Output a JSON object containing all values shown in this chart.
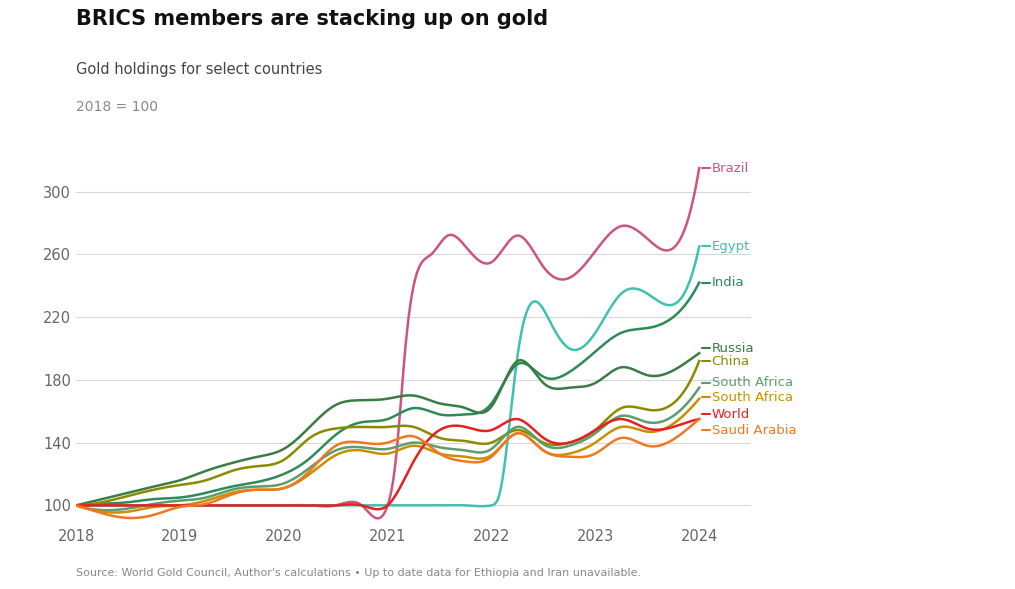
{
  "title": "BRICS members are stacking up on gold",
  "subtitle": "Gold holdings for select countries",
  "ylabel_note": "2018 = 100",
  "source": "Source: World Gold Council, Author's calculations • Up to date data for Ethiopia and Iran unavailable.",
  "ylim": [
    88,
    332
  ],
  "yticks": [
    100,
    140,
    180,
    220,
    260,
    300
  ],
  "xlim": [
    2018,
    2024.5
  ],
  "background_color": "#ffffff",
  "series": {
    "Brazil": {
      "color": "#cc5580",
      "data_x": [
        2018.0,
        2018.25,
        2018.5,
        2018.75,
        2019.0,
        2019.25,
        2019.5,
        2019.75,
        2020.0,
        2020.25,
        2020.5,
        2020.75,
        2021.0,
        2021.08,
        2021.17,
        2021.25,
        2021.42,
        2021.58,
        2021.75,
        2022.0,
        2022.25,
        2022.5,
        2022.75,
        2023.0,
        2023.25,
        2023.5,
        2023.75,
        2024.0
      ],
      "data_y": [
        100,
        100,
        100,
        100,
        100,
        100,
        100,
        100,
        100,
        100,
        100,
        100,
        100,
        130,
        200,
        240,
        260,
        272,
        265,
        255,
        272,
        252,
        245,
        262,
        278,
        270,
        264,
        315
      ]
    },
    "Egypt": {
      "color": "#40c0b0",
      "data_x": [
        2018.0,
        2018.25,
        2018.5,
        2018.75,
        2019.0,
        2019.25,
        2019.5,
        2019.75,
        2020.0,
        2020.25,
        2020.5,
        2020.75,
        2021.0,
        2021.25,
        2021.5,
        2021.75,
        2022.0,
        2022.08,
        2022.25,
        2022.42,
        2022.58,
        2022.75,
        2023.0,
        2023.25,
        2023.5,
        2023.75,
        2024.0
      ],
      "data_y": [
        100,
        100,
        100,
        100,
        100,
        100,
        100,
        100,
        100,
        100,
        100,
        100,
        100,
        100,
        100,
        100,
        100,
        108,
        195,
        230,
        215,
        200,
        210,
        235,
        235,
        228,
        265
      ]
    },
    "India": {
      "color": "#2e8b57",
      "data_x": [
        2018.0,
        2018.25,
        2018.5,
        2018.75,
        2019.0,
        2019.25,
        2019.5,
        2019.75,
        2020.0,
        2020.25,
        2020.5,
        2020.75,
        2021.0,
        2021.25,
        2021.5,
        2021.75,
        2022.0,
        2022.25,
        2022.5,
        2022.75,
        2023.0,
        2023.25,
        2023.5,
        2023.75,
        2024.0
      ],
      "data_y": [
        100,
        101,
        102,
        104,
        105,
        108,
        112,
        115,
        120,
        130,
        145,
        153,
        155,
        162,
        158,
        158,
        165,
        190,
        182,
        185,
        198,
        210,
        213,
        220,
        242
      ]
    },
    "Russia": {
      "color": "#3a7d44",
      "data_x": [
        2018.0,
        2018.25,
        2018.5,
        2018.75,
        2019.0,
        2019.25,
        2019.5,
        2019.75,
        2020.0,
        2020.25,
        2020.5,
        2020.75,
        2021.0,
        2021.25,
        2021.5,
        2021.75,
        2022.0,
        2022.25,
        2022.5,
        2022.75,
        2023.0,
        2023.25,
        2023.5,
        2023.75,
        2024.0
      ],
      "data_y": [
        100,
        104,
        108,
        112,
        116,
        122,
        127,
        131,
        136,
        150,
        164,
        167,
        168,
        170,
        165,
        162,
        163,
        192,
        178,
        175,
        178,
        188,
        183,
        186,
        197
      ]
    },
    "China": {
      "color": "#8b8b00",
      "data_x": [
        2018.0,
        2018.25,
        2018.5,
        2018.75,
        2019.0,
        2019.25,
        2019.5,
        2019.75,
        2020.0,
        2020.25,
        2020.5,
        2020.75,
        2021.0,
        2021.25,
        2021.5,
        2021.75,
        2022.0,
        2022.25,
        2022.5,
        2022.75,
        2023.0,
        2023.25,
        2023.5,
        2023.75,
        2024.0
      ],
      "data_y": [
        100,
        102,
        106,
        110,
        113,
        116,
        122,
        125,
        129,
        143,
        149,
        150,
        150,
        150,
        143,
        141,
        140,
        148,
        140,
        140,
        148,
        162,
        161,
        165,
        192
      ]
    },
    "South_Africa_green": {
      "color": "#5a9e6f",
      "data_x": [
        2018.0,
        2018.25,
        2018.5,
        2018.75,
        2019.0,
        2019.25,
        2019.5,
        2019.75,
        2020.0,
        2020.25,
        2020.5,
        2020.75,
        2021.0,
        2021.25,
        2021.5,
        2021.75,
        2022.0,
        2022.25,
        2022.5,
        2022.75,
        2023.0,
        2023.25,
        2023.5,
        2023.75,
        2024.0
      ],
      "data_y": [
        100,
        97,
        98,
        101,
        103,
        105,
        110,
        112,
        114,
        124,
        135,
        137,
        136,
        140,
        137,
        135,
        136,
        150,
        139,
        138,
        146,
        157,
        153,
        157,
        175
      ]
    },
    "South_Africa_orange": {
      "color": "#c89000",
      "data_x": [
        2018.0,
        2018.25,
        2018.5,
        2018.75,
        2019.0,
        2019.25,
        2019.5,
        2019.75,
        2020.0,
        2020.25,
        2020.5,
        2020.75,
        2021.0,
        2021.25,
        2021.5,
        2021.75,
        2022.0,
        2022.25,
        2022.5,
        2022.75,
        2023.0,
        2023.25,
        2023.5,
        2023.75,
        2024.0
      ],
      "data_y": [
        100,
        96,
        96,
        99,
        100,
        103,
        108,
        110,
        111,
        120,
        132,
        135,
        133,
        138,
        133,
        131,
        132,
        146,
        135,
        133,
        140,
        150,
        147,
        152,
        168
      ]
    },
    "World": {
      "color": "#e82020",
      "data_x": [
        2018.0,
        2018.25,
        2018.5,
        2018.75,
        2019.0,
        2019.25,
        2019.5,
        2019.75,
        2020.0,
        2020.25,
        2020.5,
        2020.75,
        2021.0,
        2021.25,
        2021.5,
        2021.75,
        2022.0,
        2022.25,
        2022.5,
        2022.75,
        2023.0,
        2023.25,
        2023.5,
        2023.75,
        2024.0
      ],
      "data_y": [
        100,
        100,
        100,
        100,
        100,
        100,
        100,
        100,
        100,
        100,
        100,
        100,
        100,
        128,
        148,
        150,
        148,
        155,
        143,
        140,
        148,
        155,
        149,
        150,
        155
      ]
    },
    "Saudi_Arabia": {
      "color": "#f07820",
      "data_x": [
        2018.0,
        2018.25,
        2018.5,
        2018.75,
        2019.0,
        2019.25,
        2019.5,
        2019.75,
        2020.0,
        2020.25,
        2020.5,
        2020.75,
        2021.0,
        2021.25,
        2021.5,
        2021.75,
        2022.0,
        2022.25,
        2022.5,
        2022.75,
        2023.0,
        2023.25,
        2023.5,
        2023.75,
        2024.0
      ],
      "data_y": [
        100,
        95,
        92,
        94,
        99,
        101,
        107,
        110,
        111,
        122,
        138,
        140,
        140,
        144,
        133,
        128,
        131,
        146,
        135,
        131,
        133,
        143,
        138,
        142,
        155
      ]
    }
  },
  "end_labels": [
    {
      "series": "Brazil",
      "color": "#cc5580",
      "y": 315,
      "text": "Brazil"
    },
    {
      "series": "Egypt",
      "color": "#40c0b0",
      "y": 265,
      "text": "Egypt"
    },
    {
      "series": "India",
      "color": "#2e8b57",
      "y": 242,
      "text": "India"
    },
    {
      "series": "Russia",
      "color": "#3a7d44",
      "y": 200,
      "text": "Russia"
    },
    {
      "series": "China",
      "color": "#8b8b00",
      "y": 192,
      "text": "China"
    },
    {
      "series": "South_Africa_green",
      "color": "#5a9e6f",
      "y": 178,
      "text": "South Africa"
    },
    {
      "series": "South_Africa_orange",
      "color": "#c89000",
      "y": 169,
      "text": "South Africa"
    },
    {
      "series": "World",
      "color": "#e82020",
      "y": 158,
      "text": "World"
    },
    {
      "series": "Saudi_Arabia",
      "color": "#f07820",
      "y": 148,
      "text": "Saudi Arabia"
    }
  ]
}
